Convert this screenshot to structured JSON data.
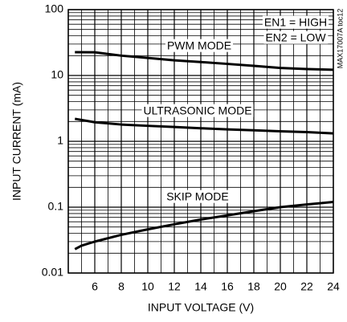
{
  "chart_data": {
    "type": "line",
    "xlabel": "INPUT VOLTAGE (V)",
    "ylabel": "INPUT CURRENT (mA)",
    "log_y": true,
    "grid": true,
    "xlim": [
      4,
      24
    ],
    "ylim": [
      0.01,
      100
    ],
    "xticks": [
      4,
      6,
      8,
      10,
      12,
      14,
      16,
      18,
      20,
      22,
      24
    ],
    "xminorticks": [
      5,
      7,
      9,
      11,
      13,
      15,
      17,
      19,
      21,
      23
    ],
    "yticks": [
      0.01,
      0.1,
      1,
      10,
      100
    ],
    "yminorticks": [
      0.02,
      0.03,
      0.04,
      0.05,
      0.06,
      0.07,
      0.08,
      0.09,
      0.2,
      0.3,
      0.4,
      0.5,
      0.6,
      0.7,
      0.8,
      0.9,
      2,
      3,
      4,
      5,
      6,
      7,
      8,
      9,
      20,
      30,
      40,
      50,
      60,
      70,
      80,
      90
    ],
    "series": [
      {
        "label": "PWM MODE",
        "color": "#000000",
        "x": [
          4.5,
          6,
          8,
          10,
          12,
          14,
          16,
          18,
          20,
          22,
          24
        ],
        "values": [
          22.6,
          22.5,
          20,
          18.5,
          17,
          16,
          15,
          14,
          13,
          12.5,
          12.2
        ]
      },
      {
        "label": "ULTRASONIC MODE",
        "color": "#000000",
        "x": [
          4.5,
          6,
          8,
          10,
          12,
          14,
          16,
          18,
          20,
          22,
          24
        ],
        "values": [
          2.2,
          1.95,
          1.8,
          1.72,
          1.65,
          1.58,
          1.52,
          1.47,
          1.42,
          1.38,
          1.32
        ]
      },
      {
        "label": "SKIP MODE",
        "color": "#000000",
        "x": [
          4.5,
          5,
          6,
          8,
          10,
          12,
          14,
          16,
          18,
          20,
          22,
          24
        ],
        "values": [
          0.023,
          0.026,
          0.03,
          0.038,
          0.046,
          0.055,
          0.065,
          0.075,
          0.087,
          0.1,
          0.11,
          0.12
        ]
      }
    ],
    "annotations": [
      "EN1 = HIGH",
      "EN2 = LOW",
      "MAX17007A toc12"
    ]
  }
}
